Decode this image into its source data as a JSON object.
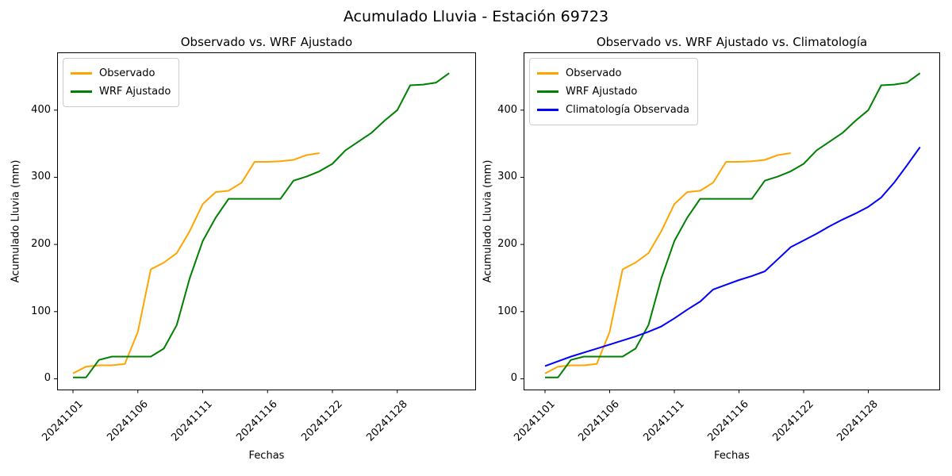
{
  "figure": {
    "suptitle": "Acumulado Lluvia - Estación 69723"
  },
  "chart_data": [
    {
      "type": "line",
      "title": "Observado vs. WRF Ajustado",
      "xlabel": "Fechas",
      "ylabel": "Acumulado Lluvia (mm)",
      "xtick_labels": [
        "20241101",
        "20241106",
        "20241111",
        "20241116",
        "20241122",
        "20241128"
      ],
      "xtick_positions": [
        0,
        5,
        10,
        15,
        20,
        25
      ],
      "yticks": [
        0,
        100,
        200,
        300,
        400
      ],
      "ylim": [
        -16,
        486
      ],
      "grid": false,
      "legend_position": "upper left",
      "series": [
        {
          "name": "Observado",
          "color": "#FFA500",
          "x": [
            0,
            1,
            2,
            3,
            4,
            5,
            6,
            7,
            8,
            9,
            10,
            11,
            12,
            13,
            14,
            15,
            16,
            17,
            18,
            19
          ],
          "values": [
            8,
            18,
            20,
            20,
            22,
            70,
            163,
            173,
            187,
            220,
            260,
            278,
            280,
            292,
            323,
            323,
            324,
            326,
            333,
            336
          ]
        },
        {
          "name": "WRF Ajustado",
          "color": "#008000",
          "x": [
            0,
            1,
            2,
            3,
            4,
            5,
            6,
            7,
            8,
            9,
            10,
            11,
            12,
            13,
            14,
            15,
            16,
            17,
            18,
            19,
            20,
            21,
            22,
            23,
            24,
            25,
            26,
            27,
            28,
            29
          ],
          "values": [
            2,
            2,
            28,
            33,
            33,
            33,
            33,
            45,
            80,
            150,
            205,
            240,
            268,
            268,
            268,
            268,
            268,
            295,
            301,
            309,
            320,
            340,
            353,
            366,
            384,
            400,
            437,
            438,
            441,
            455
          ]
        }
      ]
    },
    {
      "type": "line",
      "title": "Observado vs. WRF Ajustado vs. Climatología",
      "xlabel": "Fechas",
      "ylabel": "Acumulado Lluvia (mm)",
      "xtick_labels": [
        "20241101",
        "20241106",
        "20241111",
        "20241116",
        "20241122",
        "20241128"
      ],
      "xtick_positions": [
        0,
        5,
        10,
        15,
        20,
        25
      ],
      "yticks": [
        0,
        100,
        200,
        300,
        400
      ],
      "ylim": [
        -16,
        486
      ],
      "grid": false,
      "legend_position": "upper left",
      "series": [
        {
          "name": "Observado",
          "color": "#FFA500",
          "x": [
            0,
            1,
            2,
            3,
            4,
            5,
            6,
            7,
            8,
            9,
            10,
            11,
            12,
            13,
            14,
            15,
            16,
            17,
            18,
            19
          ],
          "values": [
            8,
            18,
            20,
            20,
            22,
            70,
            163,
            173,
            187,
            220,
            260,
            278,
            280,
            292,
            323,
            323,
            324,
            326,
            333,
            336
          ]
        },
        {
          "name": "WRF Ajustado",
          "color": "#008000",
          "x": [
            0,
            1,
            2,
            3,
            4,
            5,
            6,
            7,
            8,
            9,
            10,
            11,
            12,
            13,
            14,
            15,
            16,
            17,
            18,
            19,
            20,
            21,
            22,
            23,
            24,
            25,
            26,
            27,
            28,
            29
          ],
          "values": [
            2,
            2,
            28,
            33,
            33,
            33,
            33,
            45,
            80,
            150,
            205,
            240,
            268,
            268,
            268,
            268,
            268,
            295,
            301,
            309,
            320,
            340,
            353,
            366,
            384,
            400,
            437,
            438,
            441,
            455
          ]
        },
        {
          "name": "Climatología Observada",
          "color": "#0000FF",
          "x": [
            0,
            1,
            2,
            3,
            4,
            5,
            6,
            7,
            8,
            9,
            10,
            11,
            12,
            13,
            14,
            15,
            16,
            17,
            18,
            19,
            20,
            21,
            22,
            23,
            24,
            25,
            26,
            27,
            28,
            29
          ],
          "values": [
            19,
            26,
            33,
            39,
            45,
            51,
            57,
            63,
            70,
            78,
            90,
            103,
            115,
            133,
            140,
            147,
            153,
            160,
            178,
            196,
            206,
            216,
            227,
            237,
            246,
            256,
            270,
            292,
            318,
            345
          ]
        }
      ]
    }
  ]
}
